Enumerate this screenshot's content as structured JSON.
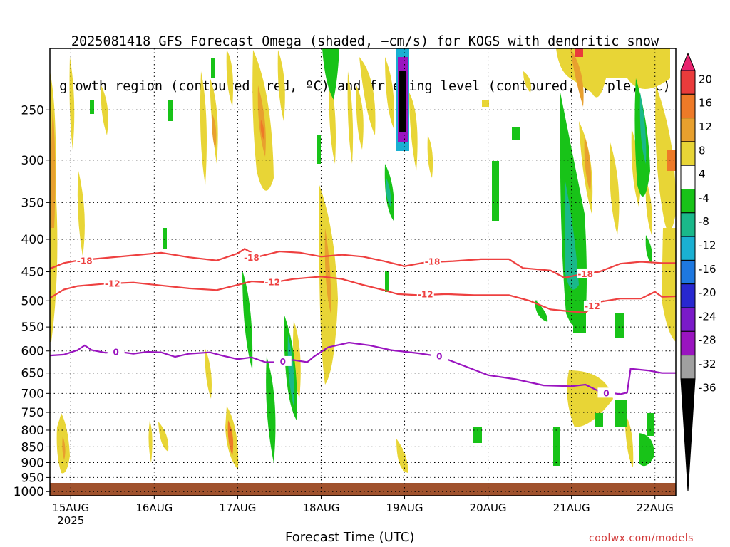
{
  "title": {
    "line1": "2025081418 GFS Forecast Omega (shaded, −cm/s) for KOGS with dendritic snow",
    "line2": "growth region (contoured, red, ºC) and freezing level (contoured, purple, ºC)"
  },
  "credit": "coolwx.com/models",
  "chart_data": {
    "type": "heatmap",
    "xlabel": "Forecast Time (UTC)",
    "ylabel": "",
    "x_ticks": [
      {
        "label": "15AUG",
        "sublabel": "2025",
        "hours": 6
      },
      {
        "label": "16AUG",
        "hours": 30
      },
      {
        "label": "17AUG",
        "hours": 54
      },
      {
        "label": "18AUG",
        "hours": 78
      },
      {
        "label": "19AUG",
        "hours": 102
      },
      {
        "label": "20AUG",
        "hours": 126
      },
      {
        "label": "21AUG",
        "hours": 150
      },
      {
        "label": "22AUG",
        "hours": 174
      }
    ],
    "xlim": [
      0,
      180
    ],
    "y_ticks": [
      250,
      300,
      350,
      400,
      450,
      500,
      550,
      600,
      650,
      700,
      750,
      800,
      850,
      900,
      950,
      1000
    ],
    "ylim": [
      200,
      1015
    ],
    "y_scale": "log",
    "y_reversed": true,
    "grid": true,
    "colorbar": {
      "labels": [
        "20",
        "16",
        "12",
        "8",
        "4",
        "-4",
        "-8",
        "-12",
        "-16",
        "-20",
        "-24",
        "-28",
        "-32",
        "-36"
      ],
      "colors": [
        "#e8236e",
        "#ea3b3b",
        "#ee7a28",
        "#e8a02e",
        "#e8d536",
        "#ffffff",
        "#18c318",
        "#1ab88a",
        "#1ab0d2",
        "#1e78e0",
        "#2828d0",
        "#7a1ac8",
        "#9a14c0",
        "#a0a0a0",
        "#000000"
      ]
    },
    "contours": [
      {
        "name": "-18",
        "color": "#ee4040",
        "points": [
          [
            0,
            445
          ],
          [
            4,
            436
          ],
          [
            8,
            432
          ],
          [
            16,
            428
          ],
          [
            24,
            424
          ],
          [
            32,
            420
          ],
          [
            40,
            427
          ],
          [
            48,
            432
          ],
          [
            54,
            421
          ],
          [
            56,
            414
          ],
          [
            58,
            420
          ],
          [
            60,
            426
          ],
          [
            66,
            418
          ],
          [
            72,
            420
          ],
          [
            78,
            426
          ],
          [
            84,
            423
          ],
          [
            90,
            426
          ],
          [
            96,
            433
          ],
          [
            102,
            441
          ],
          [
            108,
            435
          ],
          [
            116,
            433
          ],
          [
            124,
            430
          ],
          [
            132,
            430
          ],
          [
            136,
            444
          ],
          [
            144,
            448
          ],
          [
            148,
            460
          ],
          [
            152,
            455
          ],
          [
            158,
            450
          ],
          [
            164,
            437
          ],
          [
            170,
            434
          ],
          [
            176,
            436
          ],
          [
            180,
            436
          ]
        ],
        "labels": [
          [
            10,
            433,
            "-18"
          ],
          [
            58,
            428,
            "-18"
          ],
          [
            110,
            434,
            "-18"
          ],
          [
            154,
            454,
            "-18"
          ]
        ]
      },
      {
        "name": "-12",
        "color": "#ee4040",
        "points": [
          [
            0,
            495
          ],
          [
            4,
            480
          ],
          [
            8,
            474
          ],
          [
            16,
            470
          ],
          [
            24,
            468
          ],
          [
            32,
            473
          ],
          [
            40,
            478
          ],
          [
            48,
            481
          ],
          [
            54,
            472
          ],
          [
            58,
            466
          ],
          [
            64,
            468
          ],
          [
            70,
            462
          ],
          [
            78,
            458
          ],
          [
            84,
            462
          ],
          [
            90,
            472
          ],
          [
            96,
            481
          ],
          [
            100,
            488
          ],
          [
            106,
            490
          ],
          [
            114,
            488
          ],
          [
            122,
            490
          ],
          [
            132,
            490
          ],
          [
            138,
            500
          ],
          [
            144,
            516
          ],
          [
            150,
            520
          ],
          [
            154,
            522
          ],
          [
            158,
            502
          ],
          [
            164,
            496
          ],
          [
            170,
            496
          ],
          [
            174,
            484
          ],
          [
            176,
            493
          ],
          [
            180,
            492
          ]
        ],
        "labels": [
          [
            18,
            470,
            "-12"
          ],
          [
            64,
            468,
            "-12"
          ],
          [
            108,
            489,
            "-12"
          ],
          [
            156,
            510,
            "-12"
          ]
        ]
      },
      {
        "name": "0",
        "color": "#9a14c0",
        "points": [
          [
            0,
            610
          ],
          [
            4,
            608
          ],
          [
            8,
            598
          ],
          [
            10,
            588
          ],
          [
            12,
            598
          ],
          [
            16,
            604
          ],
          [
            20,
            602
          ],
          [
            24,
            606
          ],
          [
            28,
            602
          ],
          [
            32,
            603
          ],
          [
            36,
            613
          ],
          [
            40,
            606
          ],
          [
            46,
            603
          ],
          [
            50,
            611
          ],
          [
            54,
            618
          ],
          [
            58,
            614
          ],
          [
            62,
            625
          ],
          [
            66,
            625
          ],
          [
            70,
            620
          ],
          [
            74,
            625
          ],
          [
            76,
            612
          ],
          [
            80,
            592
          ],
          [
            86,
            582
          ],
          [
            92,
            588
          ],
          [
            98,
            598
          ],
          [
            106,
            605
          ],
          [
            112,
            612
          ],
          [
            118,
            630
          ],
          [
            126,
            655
          ],
          [
            134,
            665
          ],
          [
            142,
            680
          ],
          [
            150,
            682
          ],
          [
            154,
            678
          ],
          [
            158,
            695
          ],
          [
            164,
            702
          ],
          [
            166,
            698
          ],
          [
            167,
            640
          ],
          [
            172,
            644
          ],
          [
            176,
            650
          ],
          [
            180,
            650
          ]
        ],
        "labels": [
          [
            19,
            603,
            "0"
          ],
          [
            67,
            624,
            "0"
          ],
          [
            112,
            612,
            "0"
          ],
          [
            160,
            700,
            "0"
          ]
        ]
      }
    ]
  }
}
